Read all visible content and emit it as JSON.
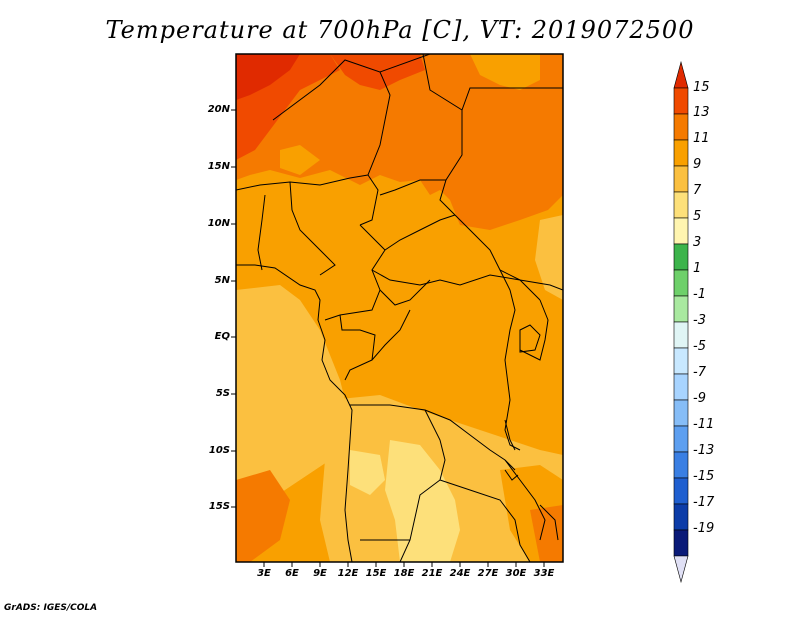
{
  "title": "Temperature at 700hPa [C], VT: 2019072500",
  "credit": "GrADS: IGES/COLA",
  "map": {
    "lat_labels": [
      "20N",
      "15N",
      "10N",
      "5N",
      "EQ",
      "5S",
      "10S",
      "15S"
    ],
    "lon_labels": [
      "3E",
      "6E",
      "9E",
      "12E",
      "15E",
      "18E",
      "21E",
      "24E",
      "27E",
      "30E",
      "33E"
    ]
  },
  "colorbar": {
    "labels": [
      "15",
      "13",
      "11",
      "9",
      "7",
      "5",
      "3",
      "1",
      "-1",
      "-3",
      "-5",
      "-7",
      "-9",
      "-11",
      "-13",
      "-15",
      "-17",
      "-19"
    ],
    "colors": [
      "#e02a00",
      "#f04a00",
      "#f57a00",
      "#f9a000",
      "#fbc040",
      "#fde07a",
      "#fff5b0",
      "#3cb44b",
      "#6ed06a",
      "#a9e9a0",
      "#e0f5f5",
      "#c8e8ff",
      "#a8d4ff",
      "#86bdf7",
      "#5d9ff0",
      "#3a7fe3",
      "#1f5fd0",
      "#0c3ca8",
      "#0a1a78",
      "#e0e0f5"
    ]
  }
}
